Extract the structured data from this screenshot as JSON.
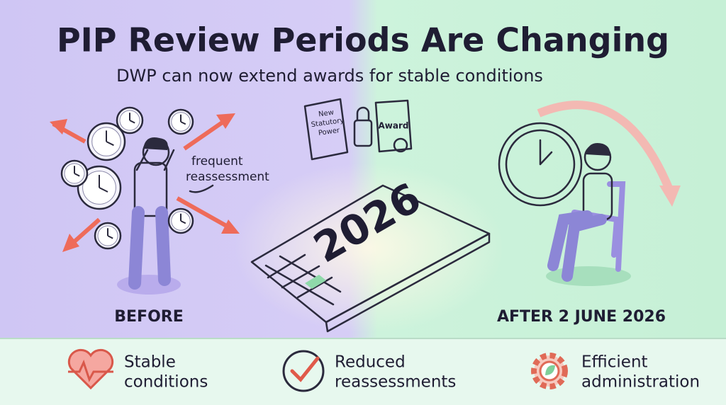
{
  "header": {
    "title": "PIP Review Periods Are Changing",
    "subtitle": "DWP can now extend awards for stable conditions"
  },
  "before": {
    "label": "BEFORE",
    "annotation": [
      "frequent",
      "reassessment"
    ]
  },
  "documents": {
    "scroll": [
      "New",
      "Statutory",
      "Power"
    ],
    "certificate": "Award"
  },
  "calendar": {
    "year": "2026"
  },
  "after": {
    "label": "AFTER 2 JUNE 2026"
  },
  "benefits": [
    {
      "lines": [
        "Stable",
        "conditions"
      ]
    },
    {
      "lines": [
        "Reduced",
        "reassessments"
      ]
    },
    {
      "lines": [
        "Efficient",
        "administration"
      ]
    }
  ]
}
